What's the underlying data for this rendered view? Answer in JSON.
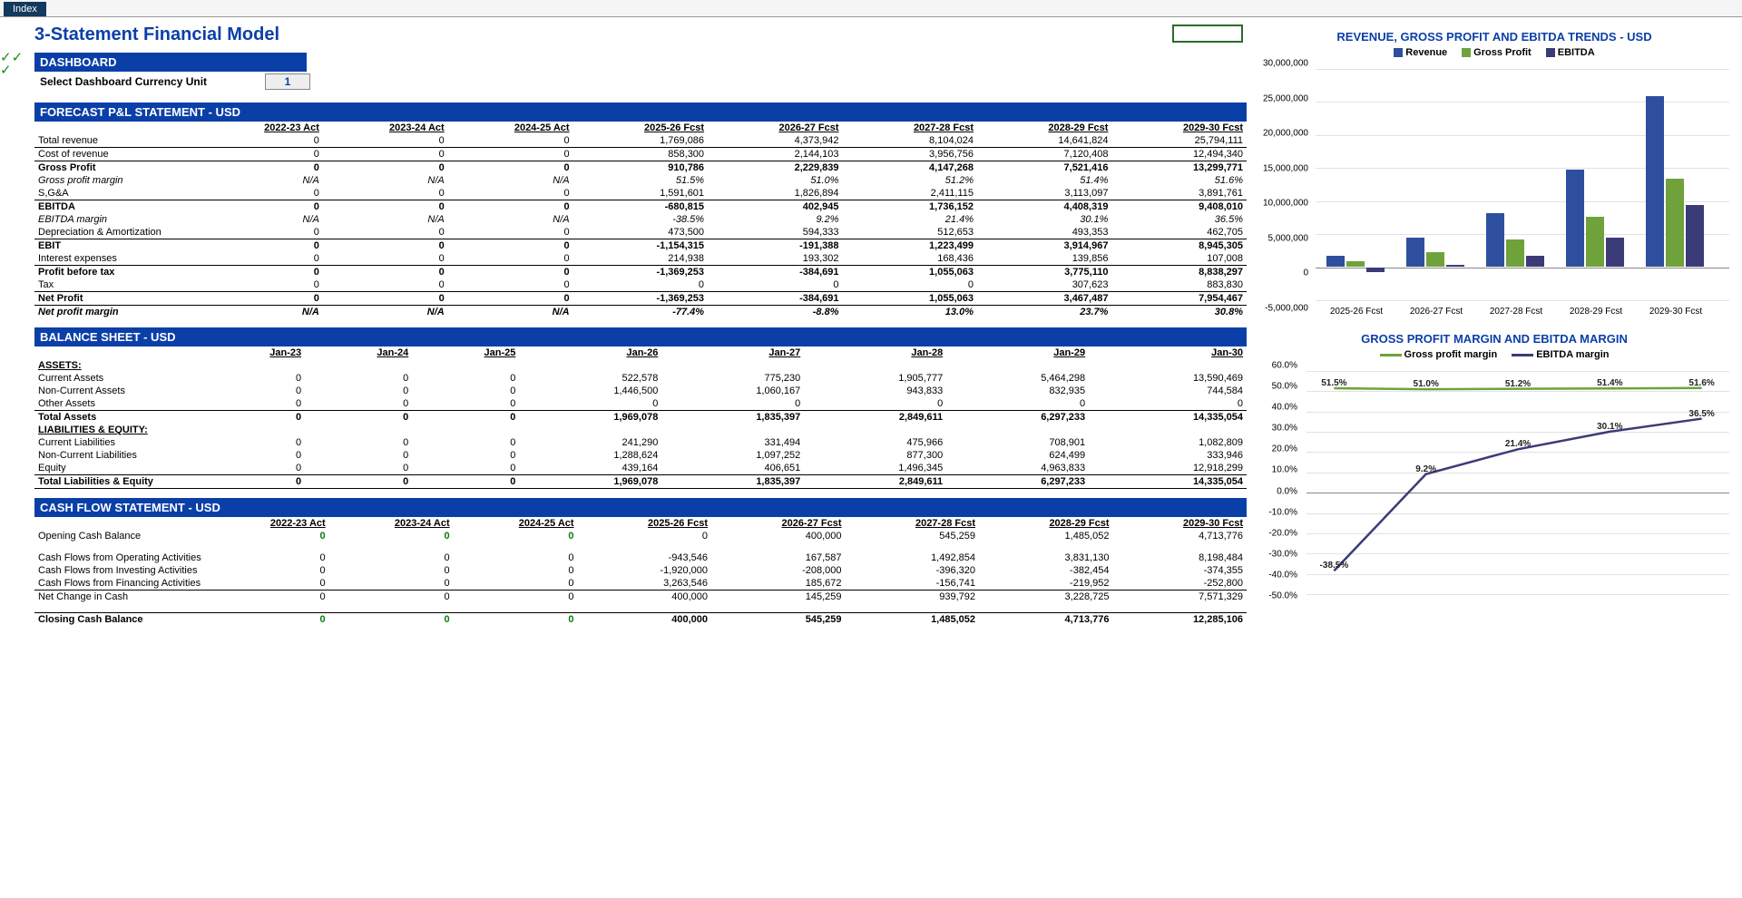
{
  "tab": {
    "label": "Index"
  },
  "title": "3-Statement Financial Model",
  "dashboard": {
    "header": "DASHBOARD",
    "select_label": "Select Dashboard Currency Unit",
    "select_value": "1"
  },
  "pl": {
    "header": "FORECAST P&L STATEMENT - USD",
    "columns": [
      "2022-23 Act",
      "2023-24 Act",
      "2024-25 Act",
      "2025-26 Fcst",
      "2026-27 Fcst",
      "2027-28 Fcst",
      "2028-29 Fcst",
      "2029-30 Fcst"
    ],
    "rows": [
      {
        "label": "Total revenue",
        "vals": [
          "0",
          "0",
          "0",
          "1,769,086",
          "4,373,942",
          "8,104,024",
          "14,641,824",
          "25,794,111"
        ],
        "style": [
          "bb"
        ]
      },
      {
        "label": "Cost of revenue",
        "vals": [
          "0",
          "0",
          "0",
          "858,300",
          "2,144,103",
          "3,956,756",
          "7,120,408",
          "12,494,340"
        ]
      },
      {
        "label": "Gross Profit",
        "vals": [
          "0",
          "0",
          "0",
          "910,786",
          "2,229,839",
          "4,147,268",
          "7,521,416",
          "13,299,771"
        ],
        "style": [
          "bold",
          "bt"
        ]
      },
      {
        "label": "Gross profit margin",
        "vals": [
          "N/A",
          "N/A",
          "N/A",
          "51.5%",
          "51.0%",
          "51.2%",
          "51.4%",
          "51.6%"
        ],
        "style": [
          "italic"
        ]
      },
      {
        "label": "S,G&A",
        "vals": [
          "0",
          "0",
          "0",
          "1,591,601",
          "1,826,894",
          "2,411,115",
          "3,113,097",
          "3,891,761"
        ]
      },
      {
        "label": "EBITDA",
        "vals": [
          "0",
          "0",
          "0",
          "-680,815",
          "402,945",
          "1,736,152",
          "4,408,319",
          "9,408,010"
        ],
        "style": [
          "bold",
          "bt"
        ]
      },
      {
        "label": "EBITDA margin",
        "vals": [
          "N/A",
          "N/A",
          "N/A",
          "-38.5%",
          "9.2%",
          "21.4%",
          "30.1%",
          "36.5%"
        ],
        "style": [
          "italic"
        ]
      },
      {
        "label": "Depreciation & Amortization",
        "vals": [
          "0",
          "0",
          "0",
          "473,500",
          "594,333",
          "512,653",
          "493,353",
          "462,705"
        ]
      },
      {
        "label": "EBIT",
        "vals": [
          "0",
          "0",
          "0",
          "-1,154,315",
          "-191,388",
          "1,223,499",
          "3,914,967",
          "8,945,305"
        ],
        "style": [
          "bold",
          "bt"
        ]
      },
      {
        "label": "Interest expenses",
        "vals": [
          "0",
          "0",
          "0",
          "214,938",
          "193,302",
          "168,436",
          "139,856",
          "107,008"
        ]
      },
      {
        "label": "Profit before tax",
        "vals": [
          "0",
          "0",
          "0",
          "-1,369,253",
          "-384,691",
          "1,055,063",
          "3,775,110",
          "8,838,297"
        ],
        "style": [
          "bold",
          "bt"
        ]
      },
      {
        "label": "Tax",
        "vals": [
          "0",
          "0",
          "0",
          "0",
          "0",
          "0",
          "307,623",
          "883,830"
        ]
      },
      {
        "label": "Net Profit",
        "vals": [
          "0",
          "0",
          "0",
          "-1,369,253",
          "-384,691",
          "1,055,063",
          "3,467,487",
          "7,954,467"
        ],
        "style": [
          "bold",
          "bt",
          "bb"
        ]
      },
      {
        "label": "Net profit margin",
        "vals": [
          "N/A",
          "N/A",
          "N/A",
          "-77.4%",
          "-8.8%",
          "13.0%",
          "23.7%",
          "30.8%"
        ],
        "style": [
          "italic",
          "bold"
        ]
      }
    ]
  },
  "bs": {
    "header": "BALANCE SHEET - USD",
    "columns": [
      "Jan-23",
      "Jan-24",
      "Jan-25",
      "Jan-26",
      "Jan-27",
      "Jan-28",
      "Jan-29",
      "Jan-30"
    ],
    "groups": [
      {
        "label": "ASSETS:",
        "rows": [
          {
            "label": "Current Assets",
            "vals": [
              "0",
              "0",
              "0",
              "522,578",
              "775,230",
              "1,905,777",
              "5,464,298",
              "13,590,469"
            ]
          },
          {
            "label": "Non-Current Assets",
            "vals": [
              "0",
              "0",
              "0",
              "1,446,500",
              "1,060,167",
              "943,833",
              "832,935",
              "744,584"
            ]
          },
          {
            "label": "Other Assets",
            "vals": [
              "0",
              "0",
              "0",
              "0",
              "0",
              "0",
              "0",
              "0"
            ]
          },
          {
            "label": "Total Assets",
            "vals": [
              "0",
              "0",
              "0",
              "1,969,078",
              "1,835,397",
              "2,849,611",
              "6,297,233",
              "14,335,054"
            ],
            "style": [
              "bold",
              "bt"
            ]
          }
        ]
      },
      {
        "label": "LIABILITIES & EQUITY:",
        "rows": [
          {
            "label": "Current Liabilities",
            "vals": [
              "0",
              "0",
              "0",
              "241,290",
              "331,494",
              "475,966",
              "708,901",
              "1,082,809"
            ]
          },
          {
            "label": "Non-Current Liabilities",
            "vals": [
              "0",
              "0",
              "0",
              "1,288,624",
              "1,097,252",
              "877,300",
              "624,499",
              "333,946"
            ]
          },
          {
            "label": "Equity",
            "vals": [
              "0",
              "0",
              "0",
              "439,164",
              "406,651",
              "1,496,345",
              "4,963,833",
              "12,918,299"
            ]
          },
          {
            "label": "Total Liabilities & Equity",
            "vals": [
              "0",
              "0",
              "0",
              "1,969,078",
              "1,835,397",
              "2,849,611",
              "6,297,233",
              "14,335,054"
            ],
            "style": [
              "bold",
              "bt",
              "bb"
            ]
          }
        ]
      }
    ]
  },
  "cf": {
    "header": "CASH FLOW STATEMENT -  USD",
    "columns": [
      "2022-23 Act",
      "2023-24 Act",
      "2024-25 Act",
      "2025-26 Fcst",
      "2026-27 Fcst",
      "2027-28 Fcst",
      "2028-29 Fcst",
      "2029-30 Fcst"
    ],
    "rows": [
      {
        "label": "Opening Cash Balance",
        "vals": [
          "0",
          "0",
          "0",
          "0",
          "400,000",
          "545,259",
          "1,485,052",
          "4,713,776"
        ],
        "style": [],
        "posfirst3": true
      },
      {
        "spacer": true
      },
      {
        "label": "Cash Flows from Operating Activities",
        "vals": [
          "0",
          "0",
          "0",
          "-943,546",
          "167,587",
          "1,492,854",
          "3,831,130",
          "8,198,484"
        ]
      },
      {
        "label": "Cash Flows from Investing Activities",
        "vals": [
          "0",
          "0",
          "0",
          "-1,920,000",
          "-208,000",
          "-396,320",
          "-382,454",
          "-374,355"
        ]
      },
      {
        "label": "Cash Flows from Financing Activities",
        "vals": [
          "0",
          "0",
          "0",
          "3,263,546",
          "185,672",
          "-156,741",
          "-219,952",
          "-252,800"
        ]
      },
      {
        "label": "Net Change in Cash",
        "vals": [
          "0",
          "0",
          "0",
          "400,000",
          "145,259",
          "939,792",
          "3,228,725",
          "7,571,329"
        ],
        "style": [
          "bt"
        ]
      },
      {
        "spacer": true
      },
      {
        "label": "Closing Cash Balance",
        "vals": [
          "0",
          "0",
          "0",
          "400,000",
          "545,259",
          "1,485,052",
          "4,713,776",
          "12,285,106"
        ],
        "style": [
          "bold",
          "bt"
        ],
        "posfirst3": true
      }
    ]
  },
  "chart1": {
    "title": "REVENUE, GROSS PROFIT AND EBITDA TRENDS - USD",
    "legend": [
      {
        "label": "Revenue",
        "color": "#2d4f9e"
      },
      {
        "label": "Gross Profit",
        "color": "#6fa23a"
      },
      {
        "label": "EBITDA",
        "color": "#3b3b78"
      }
    ],
    "ymin": -5000000,
    "ymax": 30000000,
    "yticks": [
      -5000000,
      0,
      5000000,
      10000000,
      15000000,
      20000000,
      25000000,
      30000000
    ],
    "ytick_labels": [
      "-5,000,000",
      "0",
      "5,000,000",
      "10,000,000",
      "15,000,000",
      "20,000,000",
      "25,000,000",
      "30,000,000"
    ],
    "categories": [
      "2025-26 Fcst",
      "2026-27 Fcst",
      "2027-28 Fcst",
      "2028-29 Fcst",
      "2029-30 Fcst"
    ],
    "series": [
      {
        "key": "Revenue",
        "color": "#2d4f9e",
        "vals": [
          1769086,
          4373942,
          8104024,
          14641824,
          25794111
        ]
      },
      {
        "key": "Gross Profit",
        "color": "#6fa23a",
        "vals": [
          910786,
          2229839,
          4147268,
          7521416,
          13299771
        ]
      },
      {
        "key": "EBITDA",
        "color": "#3b3b78",
        "vals": [
          -680815,
          402945,
          1736152,
          4408319,
          9408010
        ]
      }
    ]
  },
  "chart2": {
    "title": "GROSS PROFIT MARGIN AND EBITDA MARGIN",
    "legend": [
      {
        "label": "Gross profit margin",
        "color": "#6fa23a"
      },
      {
        "label": "EBITDA margin",
        "color": "#3b3b78"
      }
    ],
    "ymin": -50,
    "ymax": 60,
    "yticks": [
      -50,
      -40,
      -30,
      -20,
      -10,
      0,
      10,
      20,
      30,
      40,
      50,
      60
    ],
    "ytick_labels": [
      "-50.0%",
      "-40.0%",
      "-30.0%",
      "-20.0%",
      "-10.0%",
      "0.0%",
      "10.0%",
      "20.0%",
      "30.0%",
      "40.0%",
      "50.0%",
      "60.0%"
    ],
    "categories": [
      "2025-26 Fcst",
      "2026-27 Fcst",
      "2027-28 Fcst",
      "2028-29 Fcst",
      "2029-30 Fcst"
    ],
    "series": [
      {
        "key": "Gross profit margin",
        "color": "#6fa23a",
        "vals": [
          51.5,
          51.0,
          51.2,
          51.4,
          51.6
        ],
        "labels": [
          "51.5%",
          "51.0%",
          "51.2%",
          "51.4%",
          "51.6%"
        ]
      },
      {
        "key": "EBITDA margin",
        "color": "#3b3b78",
        "vals": [
          -38.5,
          9.2,
          21.4,
          30.1,
          36.5
        ],
        "labels": [
          "-38.5%",
          "9.2%",
          "21.4%",
          "30.1%",
          "36.5%"
        ]
      }
    ]
  },
  "colors": {
    "accent": "#0b3fa8",
    "bg": "#ffffff",
    "grid": "#e2e2e2"
  }
}
